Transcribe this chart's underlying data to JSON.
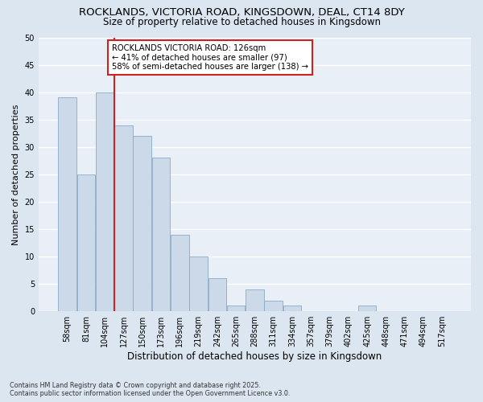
{
  "title_line1": "ROCKLANDS, VICTORIA ROAD, KINGSDOWN, DEAL, CT14 8DY",
  "title_line2": "Size of property relative to detached houses in Kingsdown",
  "xlabel": "Distribution of detached houses by size in Kingsdown",
  "ylabel": "Number of detached properties",
  "categories": [
    "58sqm",
    "81sqm",
    "104sqm",
    "127sqm",
    "150sqm",
    "173sqm",
    "196sqm",
    "219sqm",
    "242sqm",
    "265sqm",
    "288sqm",
    "311sqm",
    "334sqm",
    "357sqm",
    "379sqm",
    "402sqm",
    "425sqm",
    "448sqm",
    "471sqm",
    "494sqm",
    "517sqm"
  ],
  "values": [
    39,
    25,
    40,
    34,
    32,
    28,
    14,
    10,
    6,
    1,
    4,
    2,
    1,
    0,
    0,
    0,
    1,
    0,
    0,
    0,
    0
  ],
  "bar_color": "#ccd9e8",
  "bar_edge_color": "#8aaac8",
  "ylim": [
    0,
    50
  ],
  "yticks": [
    0,
    5,
    10,
    15,
    20,
    25,
    30,
    35,
    40,
    45,
    50
  ],
  "vline_color": "#cc2222",
  "annotation_text": "ROCKLANDS VICTORIA ROAD: 126sqm\n← 41% of detached houses are smaller (97)\n58% of semi-detached houses are larger (138) →",
  "annotation_box_color": "#ffffff",
  "annotation_box_edge": "#cc2222",
  "footer_line1": "Contains HM Land Registry data © Crown copyright and database right 2025.",
  "footer_line2": "Contains public sector information licensed under the Open Government Licence v3.0.",
  "bg_color": "#dce6f0",
  "plot_bg_color": "#e8eff6",
  "grid_color": "#ffffff",
  "title_fontsize": 9.5,
  "subtitle_fontsize": 8.5,
  "tick_fontsize": 7,
  "ylabel_fontsize": 8,
  "xlabel_fontsize": 8.5
}
